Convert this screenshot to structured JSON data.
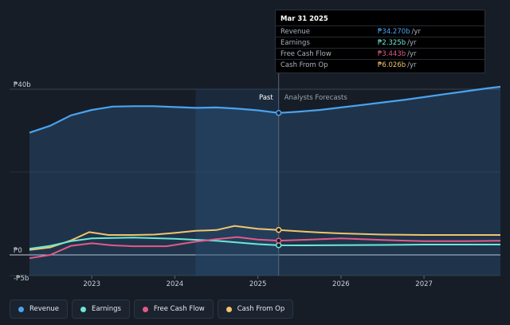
{
  "tooltip": {
    "date": "Mar 31 2025",
    "rows": [
      {
        "label": "Revenue",
        "value": "₱34.270b",
        "unit": "/yr",
        "color": "#4aa3f0"
      },
      {
        "label": "Earnings",
        "value": "₱2.325b",
        "unit": "/yr",
        "color": "#6ee7d6"
      },
      {
        "label": "Free Cash Flow",
        "value": "₱3.443b",
        "unit": "/yr",
        "color": "#e45a86"
      },
      {
        "label": "Cash From Op",
        "value": "₱6.026b",
        "unit": "/yr",
        "color": "#f2c46d"
      }
    ]
  },
  "legend": [
    {
      "label": "Revenue",
      "color": "#4aa3f0"
    },
    {
      "label": "Earnings",
      "color": "#6ee7d6"
    },
    {
      "label": "Free Cash Flow",
      "color": "#e45a86"
    },
    {
      "label": "Cash From Op",
      "color": "#f2c46d"
    }
  ],
  "chart_data": {
    "type": "line",
    "y_unit": "PHP billions",
    "ylim": [
      -5,
      40
    ],
    "yticks": [
      {
        "value": 40,
        "label": "₱40b"
      },
      {
        "value": 0,
        "label": "₱0"
      },
      {
        "value": -5,
        "label": "-₱5b"
      }
    ],
    "xlim": [
      2022.25,
      2027.92
    ],
    "xticks": [
      {
        "value": 2023,
        "label": "2023"
      },
      {
        "value": 2024,
        "label": "2024"
      },
      {
        "value": 2025,
        "label": "2025"
      },
      {
        "value": 2026,
        "label": "2026"
      },
      {
        "value": 2027,
        "label": "2027"
      }
    ],
    "divider_x": 2025.25,
    "past_label": "Past",
    "forecast_label": "Analysts Forecasts",
    "series": [
      {
        "name": "Revenue",
        "color": "#4aa3f0",
        "fill": true,
        "x": [
          2022.25,
          2022.5,
          2022.75,
          2023.0,
          2023.25,
          2023.5,
          2023.75,
          2024.0,
          2024.25,
          2024.5,
          2024.75,
          2025.0,
          2025.25,
          2025.5,
          2025.75,
          2026.0,
          2026.25,
          2026.5,
          2026.75,
          2027.0,
          2027.25,
          2027.5,
          2027.75,
          2027.92
        ],
        "values": [
          29.5,
          31.2,
          33.7,
          35.0,
          35.8,
          35.9,
          35.9,
          35.7,
          35.5,
          35.6,
          35.3,
          34.9,
          34.27,
          34.6,
          35.0,
          35.6,
          36.2,
          36.8,
          37.4,
          38.1,
          38.8,
          39.5,
          40.2,
          40.6
        ]
      },
      {
        "name": "Cash From Op",
        "color": "#f2c46d",
        "fill": false,
        "x": [
          2022.25,
          2022.5,
          2022.75,
          2022.97,
          2023.2,
          2023.5,
          2023.75,
          2024.0,
          2024.25,
          2024.5,
          2024.72,
          2025.0,
          2025.25,
          2025.5,
          2025.75,
          2026.0,
          2026.5,
          2027.0,
          2027.5,
          2027.92
        ],
        "values": [
          1.2,
          1.8,
          3.5,
          5.5,
          4.8,
          4.8,
          4.9,
          5.3,
          5.8,
          6.0,
          7.0,
          6.3,
          6.026,
          5.7,
          5.4,
          5.2,
          4.9,
          4.8,
          4.8,
          4.8
        ]
      },
      {
        "name": "Earnings",
        "color": "#6ee7d6",
        "fill": false,
        "x": [
          2022.25,
          2022.5,
          2022.75,
          2023.0,
          2023.5,
          2024.0,
          2024.5,
          2025.0,
          2025.25,
          2025.5,
          2026.0,
          2026.5,
          2027.0,
          2027.5,
          2027.92
        ],
        "values": [
          1.5,
          2.2,
          3.3,
          4.0,
          4.2,
          3.9,
          3.4,
          2.6,
          2.325,
          2.3,
          2.35,
          2.4,
          2.5,
          2.5,
          2.5
        ]
      },
      {
        "name": "Free Cash Flow",
        "color": "#e45a86",
        "fill": false,
        "x": [
          2022.25,
          2022.5,
          2022.75,
          2023.0,
          2023.25,
          2023.5,
          2023.9,
          2024.25,
          2024.5,
          2024.75,
          2025.0,
          2025.25,
          2025.5,
          2026.0,
          2026.5,
          2027.0,
          2027.5,
          2027.92
        ],
        "values": [
          -0.8,
          0.0,
          2.2,
          2.8,
          2.3,
          2.1,
          2.1,
          3.2,
          3.8,
          4.3,
          3.7,
          3.443,
          3.6,
          4.0,
          3.6,
          3.3,
          3.3,
          3.4
        ]
      }
    ],
    "markers_x": 2025.25
  }
}
